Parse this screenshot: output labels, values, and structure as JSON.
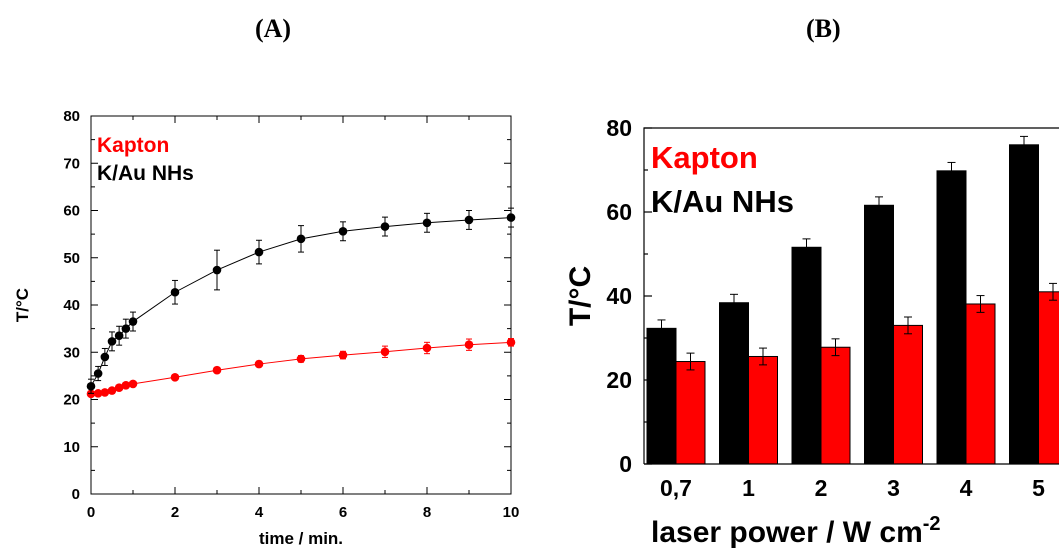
{
  "panels": {
    "a_label": "(A)",
    "b_label": "(B)"
  },
  "colors": {
    "kapton": "#ff0000",
    "k_au": "#000000"
  },
  "chart_data": [
    {
      "type": "line",
      "panel": "(A)",
      "xlabel": "time / min.",
      "ylabel": "T/°C",
      "xlim": [
        0,
        10
      ],
      "ylim": [
        0,
        80
      ],
      "xticks": [
        "0",
        "2",
        "4",
        "6",
        "8",
        "10"
      ],
      "yticks": [
        "0",
        "10",
        "20",
        "30",
        "40",
        "50",
        "60",
        "70",
        "80"
      ],
      "legend": [
        "Kapton",
        "K/Au NHs"
      ],
      "series": [
        {
          "name": "Kapton",
          "color": "#ff0000",
          "x": [
            0,
            0.17,
            0.33,
            0.5,
            0.67,
            0.83,
            1,
            2,
            3,
            4,
            5,
            6,
            7,
            8,
            9,
            10
          ],
          "y": [
            21.2,
            21.3,
            21.5,
            21.9,
            22.5,
            23,
            23.3,
            24.7,
            26.2,
            27.5,
            28.6,
            29.4,
            30.1,
            30.9,
            31.6,
            32.1
          ],
          "err": [
            0.5,
            0.5,
            0.5,
            0.5,
            0.5,
            0.5,
            0.5,
            0.5,
            0.6,
            0.6,
            0.7,
            0.8,
            1.2,
            1.2,
            1.2,
            0.8
          ]
        },
        {
          "name": "K/Au NHs",
          "color": "#000000",
          "x": [
            0,
            0.17,
            0.33,
            0.5,
            0.67,
            0.83,
            1,
            2,
            3,
            4,
            5,
            6,
            7,
            8,
            9,
            10
          ],
          "y": [
            22.8,
            25.5,
            29,
            32.3,
            33.5,
            35,
            36.5,
            42.7,
            47.4,
            51.2,
            54,
            55.6,
            56.6,
            57.4,
            58,
            58.5
          ],
          "err": [
            1.5,
            1.5,
            1.8,
            2,
            2,
            2,
            2,
            2.5,
            4.2,
            2.5,
            2.8,
            2,
            2,
            2,
            2,
            2
          ]
        }
      ]
    },
    {
      "type": "bar",
      "panel": "(B)",
      "xlabel": "laser power / W cm",
      "xlabel_sup": "-2",
      "ylabel": "T/°C",
      "ylim": [
        0,
        80
      ],
      "yticks": [
        "0",
        "20",
        "40",
        "60",
        "80"
      ],
      "categories": [
        "0,7",
        "1",
        "2",
        "3",
        "4",
        "5"
      ],
      "legend": [
        "Kapton",
        "K/Au NHs"
      ],
      "series": [
        {
          "name": "K/Au NHs",
          "color": "#000000",
          "values": [
            32.3,
            38.4,
            51.6,
            61.6,
            69.8,
            76
          ],
          "err": [
            2,
            2,
            2,
            2,
            2,
            2
          ]
        },
        {
          "name": "Kapton",
          "color": "#ff0000",
          "values": [
            24.4,
            25.6,
            27.8,
            33,
            38.1,
            41
          ],
          "err": [
            2,
            2,
            2,
            2,
            2,
            2
          ]
        }
      ]
    }
  ]
}
